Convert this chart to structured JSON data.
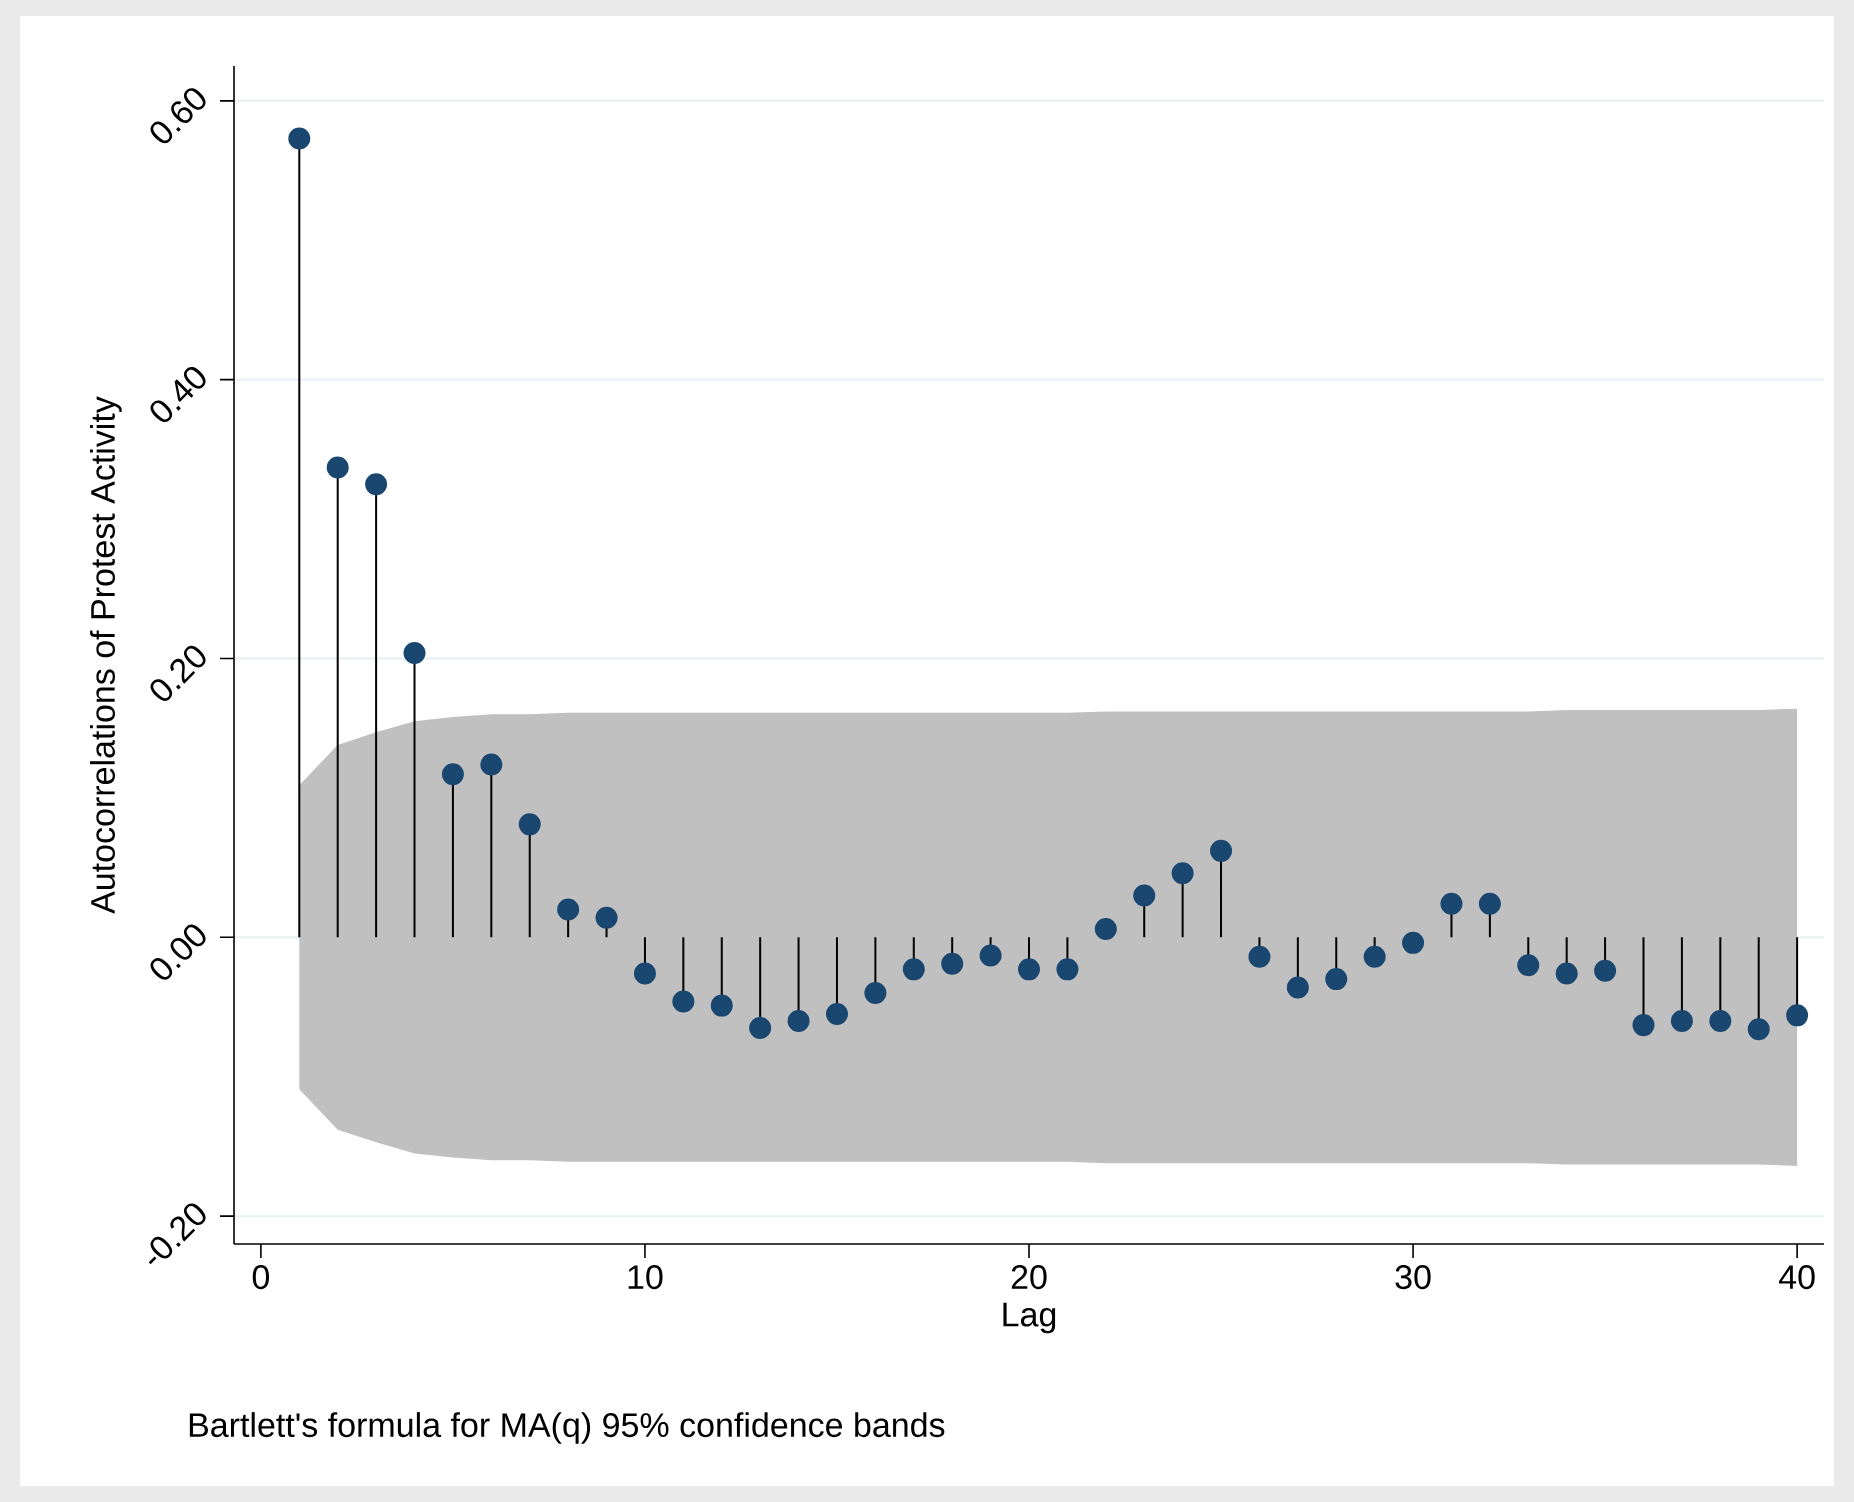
{
  "chart_data": {
    "type": "lollipop",
    "xlabel": "Lag",
    "ylabel": "Autocorrelations of Protest Activity",
    "annotations": [
      "Bartlett's formula for MA(q) 95% confidence bands"
    ],
    "x": [
      1,
      2,
      3,
      4,
      5,
      6,
      7,
      8,
      9,
      10,
      11,
      12,
      13,
      14,
      15,
      16,
      17,
      18,
      19,
      20,
      21,
      22,
      23,
      24,
      25,
      26,
      27,
      28,
      29,
      30,
      31,
      32,
      33,
      34,
      35,
      36,
      37,
      38,
      39,
      40
    ],
    "series": [
      {
        "color": "#1a476f",
        "values": [
          0.573,
          0.337,
          0.325,
          0.204,
          0.117,
          0.124,
          0.081,
          0.02,
          0.014,
          -0.026,
          -0.046,
          -0.049,
          -0.065,
          -0.06,
          -0.055,
          -0.04,
          -0.023,
          -0.019,
          -0.013,
          -0.023,
          -0.023,
          0.006,
          0.03,
          0.046,
          0.062,
          -0.014,
          -0.036,
          -0.03,
          -0.014,
          -0.004,
          0.024,
          0.024,
          -0.02,
          -0.026,
          -0.024,
          -0.063,
          -0.06,
          -0.06,
          -0.066,
          -0.056
        ],
        "upper": [
          0.109,
          0.138,
          0.147,
          0.155,
          0.158,
          0.16,
          0.16,
          0.161,
          0.161,
          0.161,
          0.161,
          0.161,
          0.161,
          0.161,
          0.161,
          0.161,
          0.161,
          0.161,
          0.161,
          0.161,
          0.161,
          0.162,
          0.162,
          0.162,
          0.162,
          0.162,
          0.162,
          0.162,
          0.162,
          0.162,
          0.162,
          0.162,
          0.162,
          0.163,
          0.163,
          0.163,
          0.163,
          0.163,
          0.163,
          0.164
        ],
        "lower": [
          -0.109,
          -0.138,
          -0.147,
          -0.155,
          -0.158,
          -0.16,
          -0.16,
          -0.161,
          -0.161,
          -0.161,
          -0.161,
          -0.161,
          -0.161,
          -0.161,
          -0.161,
          -0.161,
          -0.161,
          -0.161,
          -0.161,
          -0.161,
          -0.161,
          -0.162,
          -0.162,
          -0.162,
          -0.162,
          -0.162,
          -0.162,
          -0.162,
          -0.162,
          -0.162,
          -0.162,
          -0.162,
          -0.162,
          -0.163,
          -0.163,
          -0.163,
          -0.163,
          -0.163,
          -0.163,
          -0.164
        ]
      }
    ],
    "xlim": [
      -0.7,
      40.7
    ],
    "ylim": [
      -0.22,
      0.625
    ],
    "xticks": [
      0,
      10,
      20,
      30,
      40
    ],
    "yticks": [
      {
        "value": -0.2,
        "label": "-0.20"
      },
      {
        "value": 0,
        "label": "0.00"
      },
      {
        "value": 0.2,
        "label": "0.20"
      },
      {
        "value": 0.4,
        "label": "0.40"
      },
      {
        "value": 0.6,
        "label": "0.60"
      }
    ],
    "grid": "y",
    "marker": "circle"
  }
}
